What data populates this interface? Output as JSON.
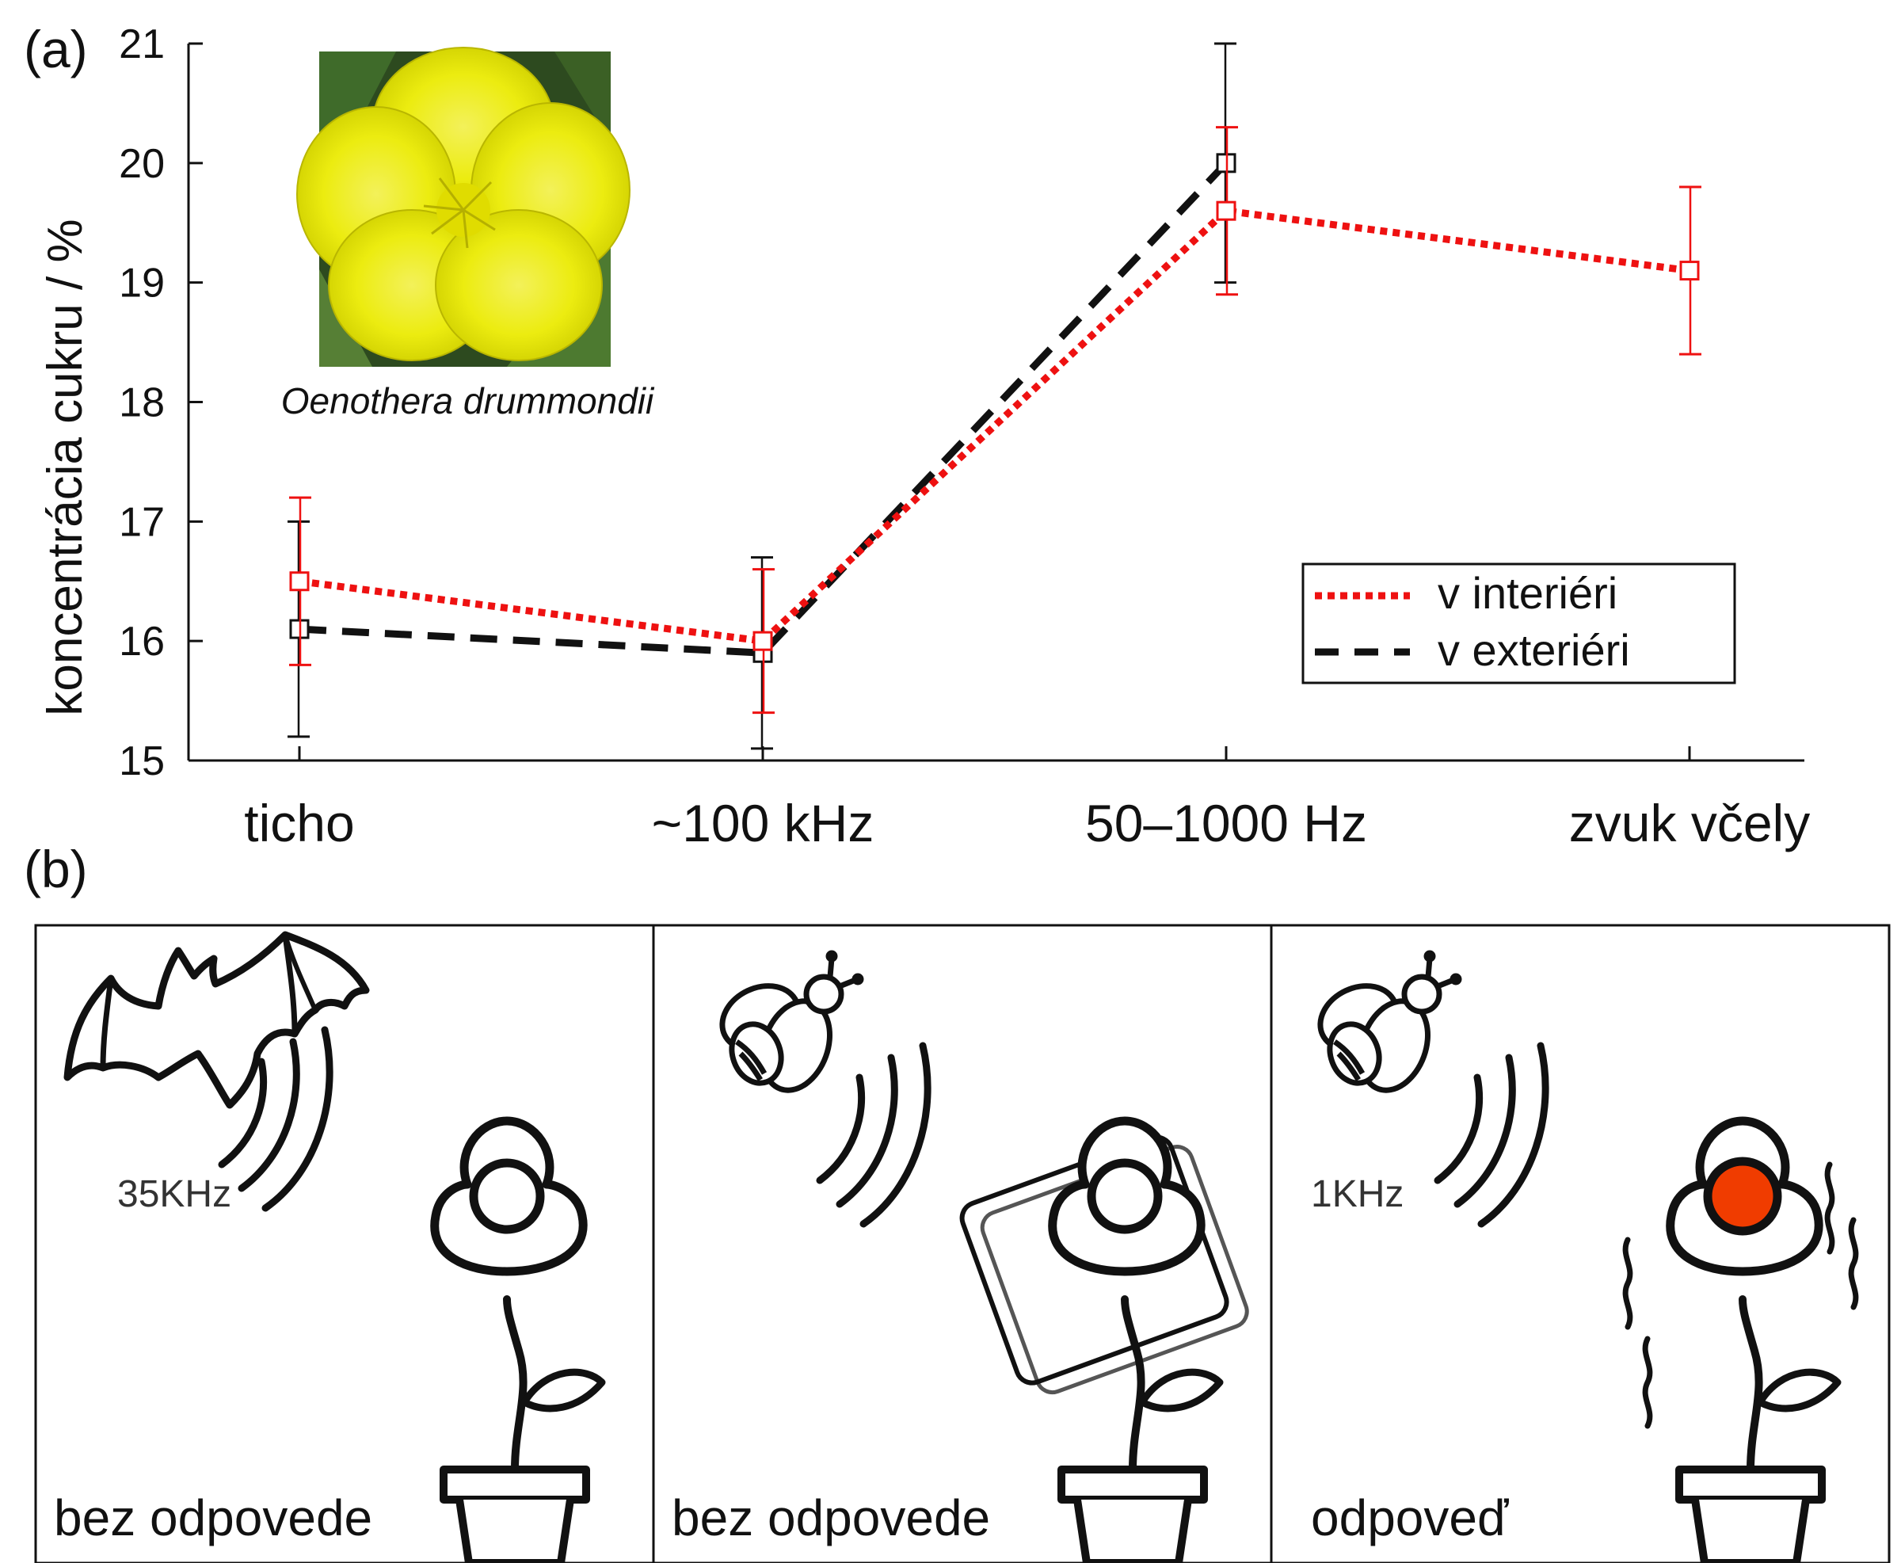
{
  "chart_data": {
    "type": "line",
    "panel_label": "(a)",
    "ylabel": "koncentrácia cukru / %",
    "ylim": [
      15,
      21
    ],
    "yticks": [
      "15",
      "16",
      "17",
      "18",
      "19",
      "20",
      "21"
    ],
    "categories": [
      "ticho",
      "~100 kHz",
      "50–1000 Hz",
      "zvuk včely"
    ],
    "series": [
      {
        "name": "v interiéri",
        "color": "#ee1111",
        "style": "dotted",
        "values": [
          16.5,
          16.0,
          19.6,
          19.1
        ],
        "err_low": [
          15.8,
          15.4,
          18.9,
          18.4
        ],
        "err_high": [
          17.2,
          16.6,
          20.3,
          19.8
        ]
      },
      {
        "name": "v exteriéri",
        "color": "#111111",
        "style": "dashed",
        "values": [
          16.1,
          15.9,
          20.0,
          null
        ],
        "err_low": [
          15.2,
          15.1,
          19.0,
          null
        ],
        "err_high": [
          17.0,
          16.7,
          21.0,
          null
        ]
      }
    ],
    "legend_position": "bottom-right",
    "inset_caption": "Oenothera drummondii"
  },
  "panel_b": {
    "label": "(b)",
    "panels": [
      {
        "animal": "bat-icon",
        "frequency": "35KHz",
        "response": "bez odpovede",
        "flower_state": "normal"
      },
      {
        "animal": "bee-icon",
        "frequency": "",
        "response": "bez odpovede",
        "flower_state": "shielded"
      },
      {
        "animal": "bee-icon",
        "frequency": "1KHz",
        "response": "odpoveď",
        "flower_state": "vibrating"
      }
    ],
    "accent_color": "#f03c00"
  }
}
